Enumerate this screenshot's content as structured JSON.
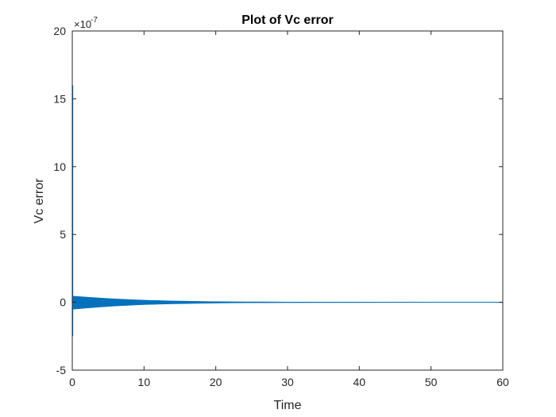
{
  "chart_data": {
    "type": "line",
    "title": "Plot of Vc error",
    "xlabel": "Time",
    "ylabel": "Vc error",
    "xlim": [
      0,
      60
    ],
    "ylim": [
      -5,
      20
    ],
    "y_scale_factor": "×10",
    "y_scale_exponent": "-7",
    "x_ticks": [
      0,
      10,
      20,
      30,
      40,
      50,
      60
    ],
    "x_tick_labels": [
      "0",
      "10",
      "20",
      "30",
      "40",
      "50",
      "60"
    ],
    "y_ticks": [
      -5,
      0,
      5,
      10,
      15,
      20
    ],
    "y_tick_labels": [
      "-5",
      "0",
      "5",
      "10",
      "15",
      "20"
    ],
    "grid": false,
    "series_color": "#0072BD",
    "initial_spike": {
      "x": 0.05,
      "ymax": 16,
      "ymin": -2.5
    },
    "envelope": {
      "x": [
        0.15,
        1,
        2,
        4,
        6,
        8,
        10,
        12,
        14,
        16,
        18,
        20,
        22,
        24,
        26,
        28,
        30,
        35,
        40,
        45,
        50,
        55,
        60
      ],
      "upper": [
        0.45,
        0.42,
        0.38,
        0.31,
        0.25,
        0.2,
        0.16,
        0.13,
        0.1,
        0.08,
        0.065,
        0.05,
        0.04,
        0.035,
        0.03,
        0.025,
        0.02,
        0.015,
        0.01,
        0.008,
        0.006,
        0.005,
        0.004
      ],
      "lower": [
        -0.5,
        -0.47,
        -0.42,
        -0.34,
        -0.27,
        -0.22,
        -0.17,
        -0.14,
        -0.11,
        -0.09,
        -0.07,
        -0.055,
        -0.045,
        -0.037,
        -0.03,
        -0.025,
        -0.02,
        -0.015,
        -0.01,
        -0.008,
        -0.006,
        -0.005,
        -0.004
      ]
    }
  }
}
